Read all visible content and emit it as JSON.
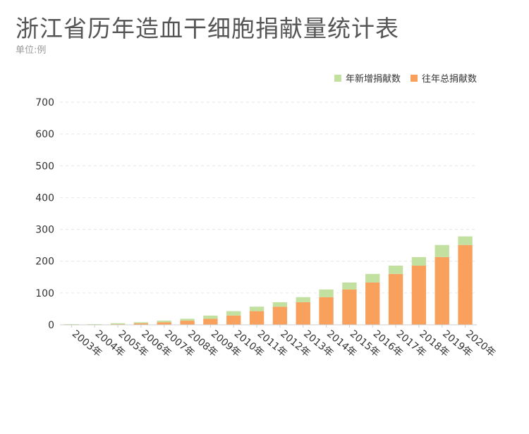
{
  "chart_data": {
    "type": "bar",
    "title": "浙江省历年造血干细胞捐献量统计表",
    "subtitle": "单位:例",
    "categories": [
      "2003年",
      "2004年",
      "2005年",
      "2006年",
      "2007年",
      "2008年",
      "2009年",
      "2010年",
      "2011年",
      "2012年",
      "2013年",
      "2014年",
      "2015年",
      "2016年",
      "2017年",
      "2018年",
      "2019年",
      "2020年"
    ],
    "series": [
      {
        "name": "年新增捐献数",
        "color": "#c2e0a0",
        "style": "waterfall-increment",
        "values": [
          1,
          1,
          2,
          3,
          5,
          6,
          10,
          14,
          14,
          14,
          16,
          24,
          22,
          27,
          26,
          27,
          38,
          27
        ]
      },
      {
        "name": "往年总捐献数",
        "color": "#f8a05c",
        "style": "bar",
        "values": [
          1,
          1,
          3,
          5,
          8,
          13,
          19,
          29,
          43,
          57,
          71,
          87,
          111,
          133,
          160,
          186,
          213,
          251
        ]
      }
    ],
    "yticks": [
      0,
      100,
      200,
      300,
      400,
      500,
      600,
      700
    ],
    "ylim": [
      0,
      700
    ],
    "grid": true,
    "legend_position": "top-right"
  },
  "legend": {
    "items": [
      {
        "label": "年新增捐献数",
        "color": "#c2e0a0"
      },
      {
        "label": "往年总捐献数",
        "color": "#f8a05c"
      }
    ]
  }
}
